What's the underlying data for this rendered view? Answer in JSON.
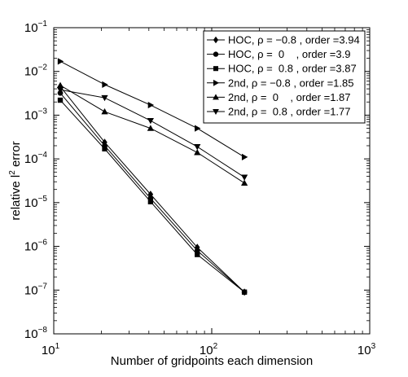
{
  "chart_data": {
    "type": "line",
    "title": "",
    "xlabel": "Number of gridpoints each dimension",
    "ylabel_base": "relative l",
    "ylabel_sup": "2",
    "ylabel_tail": " error",
    "xscale": "log",
    "yscale": "log",
    "xlim": [
      10,
      1000
    ],
    "ylim": [
      1e-08,
      0.1
    ],
    "x_ticks": [
      {
        "value": 10,
        "base": "10",
        "exp": "1"
      },
      {
        "value": 100,
        "base": "10",
        "exp": "2"
      },
      {
        "value": 1000,
        "base": "10",
        "exp": "3"
      }
    ],
    "y_ticks": [
      {
        "value": 1e-08,
        "base": "10",
        "exp": "−8"
      },
      {
        "value": 1e-07,
        "base": "10",
        "exp": "−7"
      },
      {
        "value": 1e-06,
        "base": "10",
        "exp": "−6"
      },
      {
        "value": 1e-05,
        "base": "10",
        "exp": "−5"
      },
      {
        "value": 0.0001,
        "base": "10",
        "exp": "−4"
      },
      {
        "value": 0.001,
        "base": "10",
        "exp": "−3"
      },
      {
        "value": 0.01,
        "base": "10",
        "exp": "−2"
      },
      {
        "value": 0.1,
        "base": "10",
        "exp": "−1"
      }
    ],
    "grid": false,
    "legend_position": "top-right",
    "x": [
      11,
      21,
      41,
      81,
      161
    ],
    "series": [
      {
        "name": "HOC, ρ = −0.8 , order =3.94",
        "marker": "diamond",
        "values": [
          0.0045,
          0.00024,
          1.55e-05,
          9.5e-07,
          9e-08
        ]
      },
      {
        "name": "HOC, ρ =  0    , order =3.9",
        "marker": "circle",
        "values": [
          0.0032,
          0.0002,
          1.25e-05,
          8e-07,
          9e-08
        ]
      },
      {
        "name": "HOC, ρ =  0.8 , order =3.87",
        "marker": "square",
        "values": [
          0.0022,
          0.00017,
          1.05e-05,
          6.5e-07,
          9e-08
        ]
      },
      {
        "name": "2nd, ρ = −0.8 , order =1.85",
        "marker": "triangle-right",
        "values": [
          0.017,
          0.005,
          0.0017,
          0.0005,
          0.00011
        ]
      },
      {
        "name": "2nd, ρ =  0    , order =1.87",
        "marker": "triangle-up",
        "values": [
          0.0048,
          0.0012,
          0.0005,
          0.00014,
          2.8e-05
        ]
      },
      {
        "name": "2nd, ρ =  0.8 , order =1.77",
        "marker": "triangle-down",
        "values": [
          0.0038,
          0.0025,
          0.00075,
          0.00019,
          3.8e-05
        ]
      }
    ]
  }
}
